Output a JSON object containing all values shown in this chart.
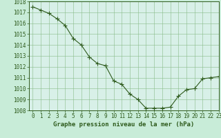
{
  "x": [
    0,
    1,
    2,
    3,
    4,
    5,
    6,
    7,
    8,
    9,
    10,
    11,
    12,
    13,
    14,
    15,
    16,
    17,
    18,
    19,
    20,
    21,
    22,
    23
  ],
  "y": [
    1017.5,
    1017.2,
    1016.9,
    1016.4,
    1015.8,
    1014.6,
    1014.0,
    1012.9,
    1012.3,
    1012.1,
    1010.7,
    1010.4,
    1009.5,
    1009.0,
    1008.2,
    1008.2,
    1008.2,
    1008.3,
    1009.3,
    1009.9,
    1010.0,
    1010.9,
    1011.0,
    1011.1
  ],
  "line_color": "#2d5a1b",
  "marker": "+",
  "bg_color": "#c8ecd8",
  "plot_bg_color": "#d8f0e8",
  "grid_color": "#88bb88",
  "xlabel": "Graphe pression niveau de la mer (hPa)",
  "ylim": [
    1008,
    1018
  ],
  "xlim": [
    -0.5,
    23
  ],
  "yticks": [
    1008,
    1009,
    1010,
    1011,
    1012,
    1013,
    1014,
    1015,
    1016,
    1017,
    1018
  ],
  "xticks": [
    0,
    1,
    2,
    3,
    4,
    5,
    6,
    7,
    8,
    9,
    10,
    11,
    12,
    13,
    14,
    15,
    16,
    17,
    18,
    19,
    20,
    21,
    22,
    23
  ],
  "tick_fontsize": 5.5,
  "xlabel_fontsize": 6.5,
  "line_width": 0.8,
  "marker_size": 4,
  "marker_ew": 0.8
}
